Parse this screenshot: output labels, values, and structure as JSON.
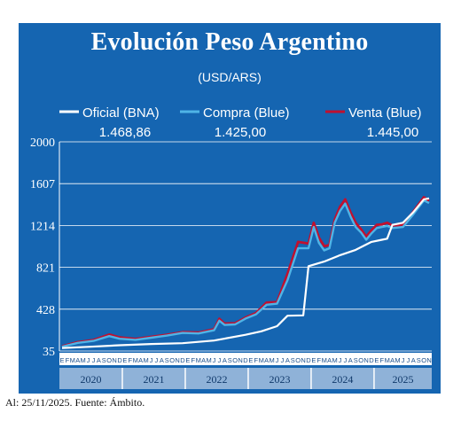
{
  "title": "Evolución Peso Argentino",
  "subtitle": "(USD/ARS)",
  "footer": "Al: 25/11/2025. Fuente: Ámbito.",
  "colors": {
    "background": "#1565b1",
    "oficial": "#ffffff",
    "compra": "#4fb4e6",
    "venta": "#c0102f",
    "grid": "#ffffff",
    "x_band": "#8fb2d8"
  },
  "chart_data": {
    "type": "line",
    "x_unit": "month",
    "ylim": [
      35,
      2000
    ],
    "y_ticks": [
      35,
      428,
      821,
      1214,
      1607,
      2000
    ],
    "y_tick_labels": [
      "35",
      "428",
      "821",
      "1214",
      "1607",
      "2000"
    ],
    "month_letters": [
      "E",
      "F",
      "M",
      "A",
      "M",
      "J",
      "J",
      "A",
      "S",
      "O",
      "N",
      "D"
    ],
    "years": [
      "2020",
      "2021",
      "2022",
      "2023",
      "2024",
      "2025"
    ],
    "legend": [
      {
        "name": "Oficial (BNA)",
        "value": "1.468,86",
        "color": "#ffffff"
      },
      {
        "name": "Compra (Blue)",
        "value": "1.425,00",
        "color": "#4fb4e6"
      },
      {
        "name": "Venta (Blue)",
        "value": "1.445,00",
        "color": "#c0102f"
      }
    ],
    "series": [
      {
        "name": "Oficial (BNA)",
        "color": "#ffffff",
        "points": [
          [
            "2020-01",
            63
          ],
          [
            "2020-06",
            74
          ],
          [
            "2020-12",
            89
          ],
          [
            "2021-06",
            101
          ],
          [
            "2021-12",
            108
          ],
          [
            "2022-06",
            133
          ],
          [
            "2022-12",
            187
          ],
          [
            "2023-03",
            220
          ],
          [
            "2023-06",
            268
          ],
          [
            "2023-08",
            366
          ],
          [
            "2023-11",
            370
          ],
          [
            "2023-12",
            832
          ],
          [
            "2024-03",
            875
          ],
          [
            "2024-06",
            935
          ],
          [
            "2024-09",
            985
          ],
          [
            "2024-12",
            1060
          ],
          [
            "2025-02",
            1080
          ],
          [
            "2025-03",
            1090
          ],
          [
            "2025-04",
            1220
          ],
          [
            "2025-06",
            1240
          ],
          [
            "2025-08",
            1340
          ],
          [
            "2025-10",
            1460
          ],
          [
            "2025-11",
            1468.86
          ]
        ]
      },
      {
        "name": "Compra (Blue)",
        "color": "#4fb4e6",
        "points": [
          [
            "2020-01",
            75
          ],
          [
            "2020-04",
            112
          ],
          [
            "2020-07",
            130
          ],
          [
            "2020-10",
            175
          ],
          [
            "2020-12",
            150
          ],
          [
            "2021-03",
            140
          ],
          [
            "2021-06",
            160
          ],
          [
            "2021-09",
            180
          ],
          [
            "2021-12",
            205
          ],
          [
            "2022-03",
            200
          ],
          [
            "2022-06",
            230
          ],
          [
            "2022-07",
            320
          ],
          [
            "2022-08",
            280
          ],
          [
            "2022-10",
            285
          ],
          [
            "2022-12",
            340
          ],
          [
            "2023-02",
            380
          ],
          [
            "2023-04",
            470
          ],
          [
            "2023-06",
            480
          ],
          [
            "2023-08",
            700
          ],
          [
            "2023-10",
            1000
          ],
          [
            "2023-12",
            1000
          ],
          [
            "2024-01",
            1200
          ],
          [
            "2024-02",
            1050
          ],
          [
            "2024-03",
            980
          ],
          [
            "2024-04",
            1000
          ],
          [
            "2024-05",
            1240
          ],
          [
            "2024-06",
            1350
          ],
          [
            "2024-07",
            1420
          ],
          [
            "2024-08",
            1300
          ],
          [
            "2024-09",
            1200
          ],
          [
            "2024-10",
            1150
          ],
          [
            "2024-11",
            1080
          ],
          [
            "2024-12",
            1140
          ],
          [
            "2025-01",
            1190
          ],
          [
            "2025-02",
            1200
          ],
          [
            "2025-03",
            1210
          ],
          [
            "2025-04",
            1190
          ],
          [
            "2025-06",
            1200
          ],
          [
            "2025-08",
            1320
          ],
          [
            "2025-10",
            1450
          ],
          [
            "2025-11",
            1425
          ]
        ]
      },
      {
        "name": "Venta (Blue)",
        "color": "#c0102f",
        "points": [
          [
            "2020-01",
            80
          ],
          [
            "2020-04",
            118
          ],
          [
            "2020-07",
            138
          ],
          [
            "2020-10",
            190
          ],
          [
            "2020-12",
            162
          ],
          [
            "2021-03",
            148
          ],
          [
            "2021-06",
            168
          ],
          [
            "2021-09",
            188
          ],
          [
            "2021-12",
            212
          ],
          [
            "2022-03",
            208
          ],
          [
            "2022-06",
            240
          ],
          [
            "2022-07",
            338
          ],
          [
            "2022-08",
            292
          ],
          [
            "2022-10",
            296
          ],
          [
            "2022-12",
            350
          ],
          [
            "2023-02",
            392
          ],
          [
            "2023-04",
            490
          ],
          [
            "2023-06",
            495
          ],
          [
            "2023-08",
            760
          ],
          [
            "2023-10",
            1060
          ],
          [
            "2023-12",
            1045
          ],
          [
            "2024-01",
            1240
          ],
          [
            "2024-02",
            1100
          ],
          [
            "2024-03",
            1020
          ],
          [
            "2024-04",
            1030
          ],
          [
            "2024-05",
            1270
          ],
          [
            "2024-06",
            1390
          ],
          [
            "2024-07",
            1460
          ],
          [
            "2024-08",
            1340
          ],
          [
            "2024-09",
            1240
          ],
          [
            "2024-10",
            1180
          ],
          [
            "2024-11",
            1110
          ],
          [
            "2024-12",
            1170
          ],
          [
            "2025-01",
            1220
          ],
          [
            "2025-02",
            1225
          ],
          [
            "2025-03",
            1240
          ],
          [
            "2025-04",
            1215
          ],
          [
            "2025-06",
            1220
          ],
          [
            "2025-08",
            1345
          ],
          [
            "2025-10",
            1480
          ],
          [
            "2025-11",
            1445
          ]
        ]
      }
    ]
  }
}
